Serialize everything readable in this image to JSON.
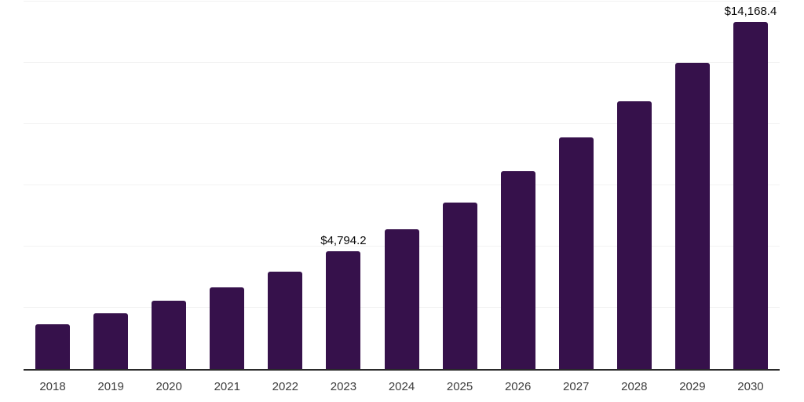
{
  "chart_data": {
    "type": "bar",
    "title": "",
    "xlabel": "",
    "ylabel": "",
    "categories": [
      "2018",
      "2019",
      "2020",
      "2021",
      "2022",
      "2023",
      "2024",
      "2025",
      "2026",
      "2027",
      "2028",
      "2029",
      "2030"
    ],
    "values": [
      1820,
      2270,
      2780,
      3320,
      3990,
      4794.2,
      5715,
      6800,
      8080,
      9450,
      10920,
      12490,
      14168.4
    ],
    "annotations": [
      {
        "category": "2023",
        "text": "$4,794.2"
      },
      {
        "category": "2030",
        "text": "$14,168.4"
      }
    ],
    "ylim": [
      0,
      15000
    ],
    "gridline_interval": 2500,
    "grid": "horizontal",
    "legend": "none",
    "y_axis_labels_visible": false,
    "colors": {
      "bar": "#36114B",
      "axis": "#2a2a2a",
      "gridline": "#f2f2f2",
      "tick_label": "#3d3d3d",
      "data_label": "#0a0a0a",
      "background": "#ffffff"
    }
  }
}
